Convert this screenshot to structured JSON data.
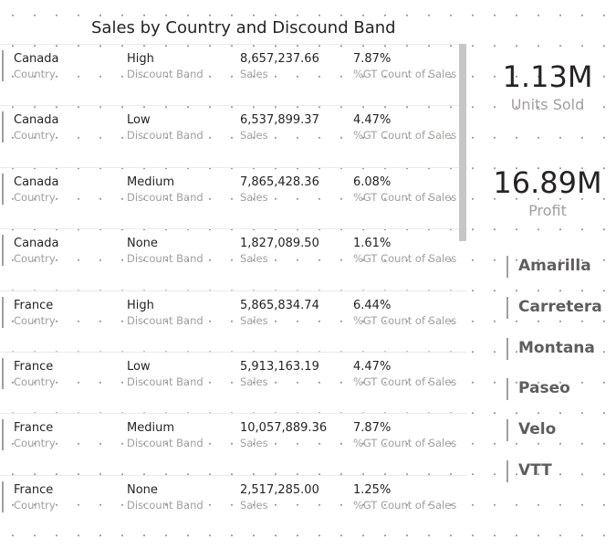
{
  "visual_title": "Sales by Country and Discound Band",
  "field_labels": {
    "country": "Country",
    "discount_band": "Discount Band",
    "sales": "Sales",
    "pct": "%GT Count of Sales"
  },
  "rows": [
    {
      "country": "Canada",
      "band": "High",
      "sales": "8,657,237.66",
      "pct": "7.87%"
    },
    {
      "country": "Canada",
      "band": "Low",
      "sales": "6,537,899.37",
      "pct": "4.47%"
    },
    {
      "country": "Canada",
      "band": "Medium",
      "sales": "7,865,428.36",
      "pct": "6.08%"
    },
    {
      "country": "Canada",
      "band": "None",
      "sales": "1,827,089.50",
      "pct": "1.61%"
    },
    {
      "country": "France",
      "band": "High",
      "sales": "5,865,834.74",
      "pct": "6.44%"
    },
    {
      "country": "France",
      "band": "Low",
      "sales": "5,913,163.19",
      "pct": "4.47%"
    },
    {
      "country": "France",
      "band": "Medium",
      "sales": "10,057,889.36",
      "pct": "7.87%"
    },
    {
      "country": "France",
      "band": "None",
      "sales": "2,517,285.00",
      "pct": "1.25%"
    }
  ],
  "cards": [
    {
      "value": "1.13M",
      "label": "Units Sold"
    },
    {
      "value": "16.89M",
      "label": "Profit"
    }
  ],
  "slicer_items": [
    "Amarilla",
    "Carretera",
    "Montana",
    "Paseo",
    "Velo",
    "VTT"
  ],
  "colors": {
    "bar": "#a19f9d",
    "value_text": "#252423",
    "label_text": "#a19f9d",
    "slicer_text": "#605e5c"
  }
}
